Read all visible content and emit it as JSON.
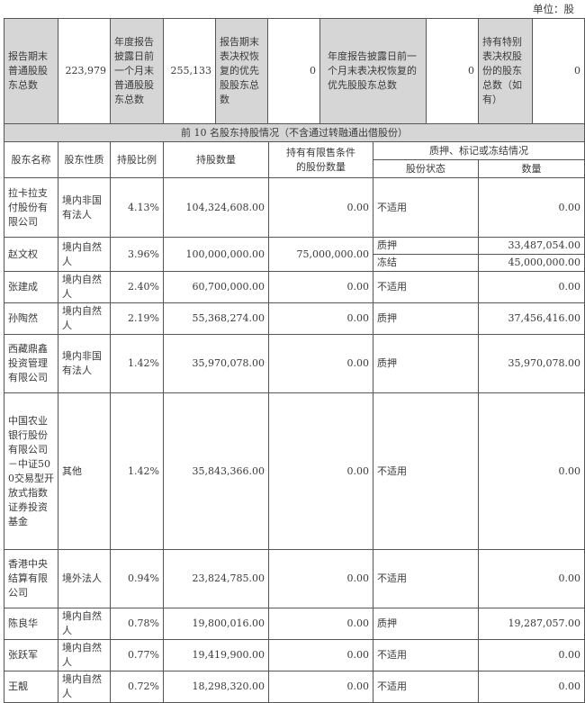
{
  "unit_label": "单位：股",
  "summary": {
    "common_holders_label": "报告期末普通股股东总数",
    "common_holders": "223,979",
    "common_prev_label": "年度报告披露日前一个月末普通股股东总数",
    "common_prev": "255,133",
    "pref_label": "报告期末表决权恢复的优先股股东总数",
    "pref": "0",
    "pref_prev_label": "年度报告披露日前一个月末表决权恢复的优先股股东总数",
    "pref_prev": "0",
    "special_label": "持有特别表决权股份的股东总数（如有）",
    "special": "0"
  },
  "section_title": "前 10 名股东持股情况（不含通过转融通出借股份）",
  "headers": {
    "name": "股东名称",
    "type": "股东性质",
    "ratio": "持股比例",
    "shares": "持股数量",
    "restricted": "持有有限售条件的股份数量",
    "pledge": "质押、标记或冻结情况",
    "status": "股份状态",
    "qty": "数量"
  },
  "rows": [
    {
      "name": "拉卡拉支付股份有限公司",
      "type": "境内非国有法人",
      "ratio": "4.13%",
      "shares": "104,324,608.00",
      "restricted": "0.00",
      "pledges": [
        {
          "status": "不适用",
          "qty": "0.00"
        }
      ]
    },
    {
      "name": "赵文权",
      "type": "境内自然人",
      "ratio": "3.96%",
      "shares": "100,000,000.00",
      "restricted": "75,000,000.00",
      "pledges": [
        {
          "status": "质押",
          "qty": "33,487,054.00"
        },
        {
          "status": "冻结",
          "qty": "45,000,000.00"
        }
      ]
    },
    {
      "name": "张建成",
      "type": "境内自然人",
      "ratio": "2.40%",
      "shares": "60,700,000.00",
      "restricted": "0.00",
      "pledges": [
        {
          "status": "不适用",
          "qty": "0.00"
        }
      ]
    },
    {
      "name": "孙陶然",
      "type": "境内自然人",
      "ratio": "2.19%",
      "shares": "55,368,274.00",
      "restricted": "0.00",
      "pledges": [
        {
          "status": "质押",
          "qty": "37,456,416.00"
        }
      ]
    },
    {
      "name": "西藏鼎鑫投资管理有限公司",
      "type": "境内非国有法人",
      "ratio": "1.42%",
      "shares": "35,970,078.00",
      "restricted": "0.00",
      "pledges": [
        {
          "status": "质押",
          "qty": "35,970,078.00"
        }
      ]
    },
    {
      "name": "中国农业银行股份有限公司－中证500交易型开放式指数证券投资基金",
      "type": "其他",
      "ratio": "1.42%",
      "shares": "35,843,366.00",
      "restricted": "0.00",
      "pledges": [
        {
          "status": "不适用",
          "qty": "0.00"
        }
      ]
    },
    {
      "name": "香港中央结算有限公司",
      "type": "境外法人",
      "ratio": "0.94%",
      "shares": "23,824,785.00",
      "restricted": "0.00",
      "pledges": [
        {
          "status": "不适用",
          "qty": "0.00"
        }
      ]
    },
    {
      "name": "陈良华",
      "type": "境内自然人",
      "ratio": "0.78%",
      "shares": "19,800,016.00",
      "restricted": "0.00",
      "pledges": [
        {
          "status": "质押",
          "qty": "19,287,057.00"
        }
      ]
    },
    {
      "name": "张跃军",
      "type": "境内自然人",
      "ratio": "0.77%",
      "shares": "19,419,900.00",
      "restricted": "0.00",
      "pledges": [
        {
          "status": "不适用",
          "qty": "0.00"
        }
      ]
    },
    {
      "name": "王靓",
      "type": "境内自然人",
      "ratio": "0.72%",
      "shares": "18,298,320.00",
      "restricted": "0.00",
      "pledges": [
        {
          "status": "不适用",
          "qty": "0.00"
        }
      ]
    }
  ]
}
